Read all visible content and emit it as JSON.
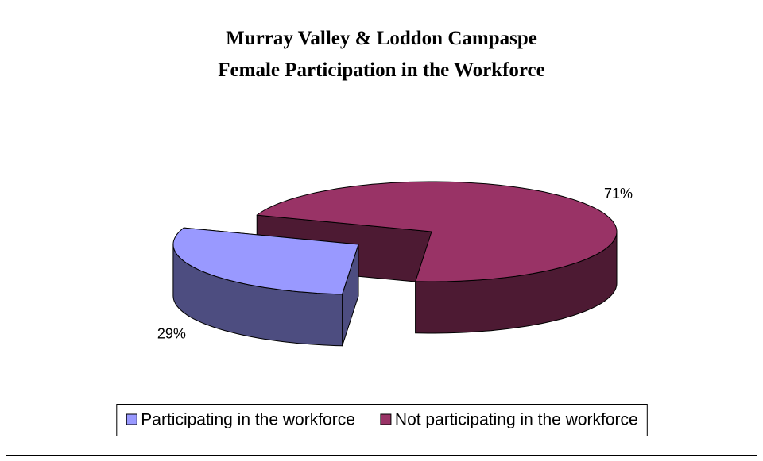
{
  "chart_data": {
    "type": "pie",
    "title": [
      "Murray Valley & Loddon Campaspe",
      "Female Participation in the Workforce"
    ],
    "categories": [
      "Participating in the workforce",
      "Not participating in the workforce"
    ],
    "values": [
      29,
      71
    ],
    "value_labels": [
      "29%",
      "71%"
    ],
    "colors": [
      "#9999ff",
      "#993366"
    ],
    "legend": "bottom"
  }
}
